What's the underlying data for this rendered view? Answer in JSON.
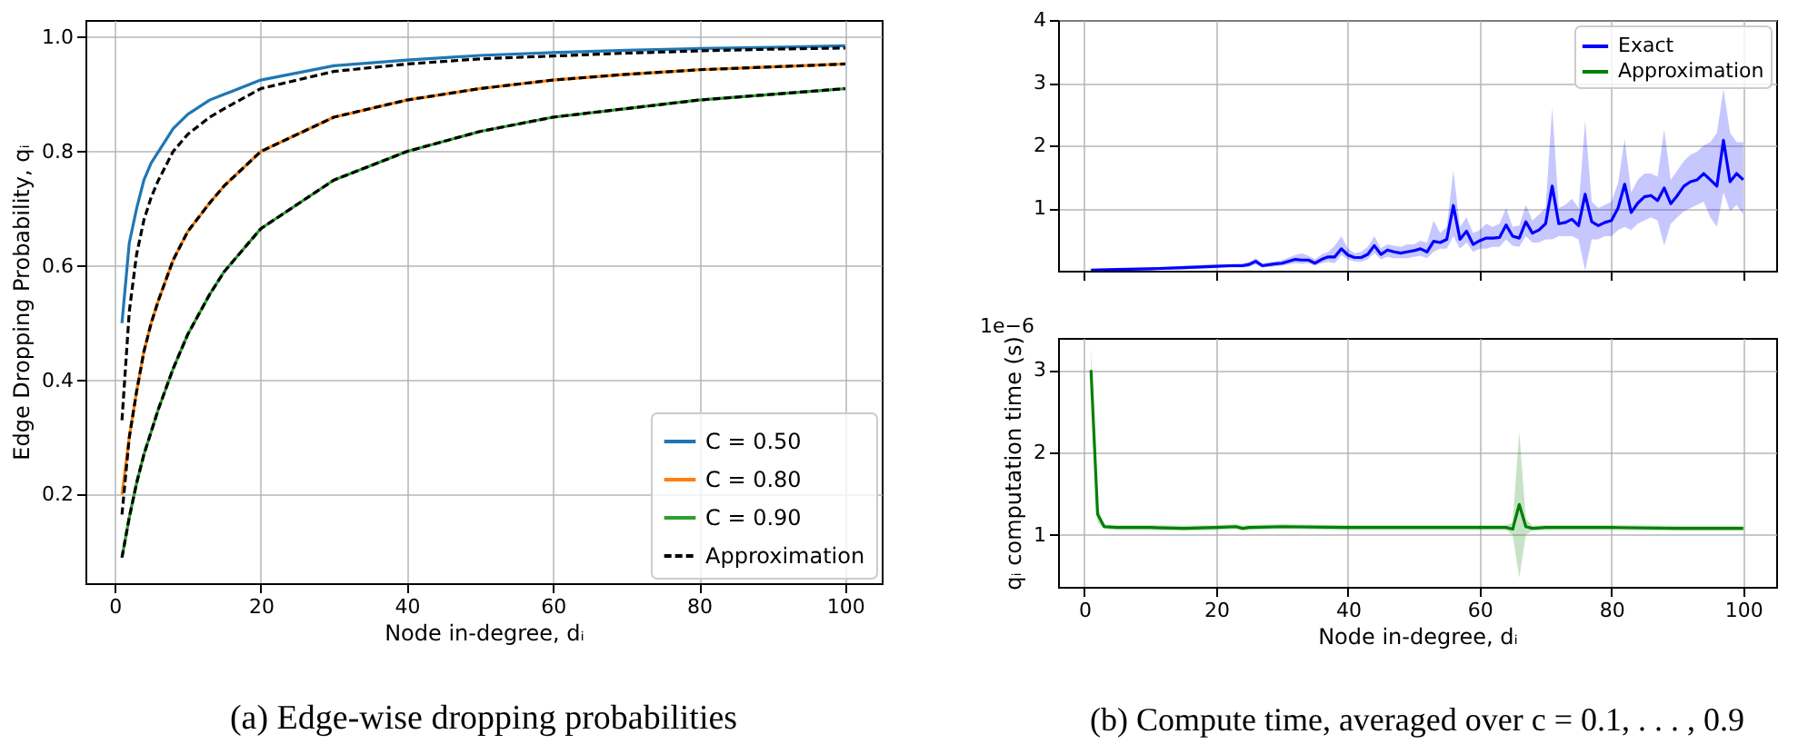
{
  "chart_data": [
    {
      "type": "line",
      "xlabel": "Node in-degree, dᵢ",
      "ylabel": "Edge Dropping Probability, qᵢ",
      "xlim": [
        -4,
        105
      ],
      "ylim": [
        0.045,
        1.03
      ],
      "xticks": [
        0,
        20,
        40,
        60,
        80,
        100
      ],
      "yticks": [
        0.2,
        0.4,
        0.6,
        0.8,
        {
          "value": 1.0,
          "label": "1.0"
        }
      ],
      "grid": true,
      "legend": "bottom right",
      "annotations": [
        "(a) Edge-wise dropping probabilities"
      ],
      "series": [
        {
          "name": "C = 0.50",
          "color": "#1f77b4",
          "line_style": "solid",
          "x": [
            1,
            2,
            3,
            4,
            5,
            6,
            8,
            10,
            13,
            15,
            20,
            30,
            40,
            50,
            60,
            70,
            80,
            90,
            100
          ],
          "values": [
            0.5,
            0.64,
            0.7,
            0.75,
            0.78,
            0.8,
            0.84,
            0.865,
            0.89,
            0.9,
            0.925,
            0.95,
            0.96,
            0.968,
            0.973,
            0.977,
            0.98,
            0.982,
            0.985
          ]
        },
        {
          "name": "C = 0.80",
          "color": "#ff7f0e",
          "line_style": "solid",
          "x": [
            1,
            2,
            3,
            4,
            5,
            6,
            8,
            10,
            13,
            15,
            20,
            30,
            40,
            50,
            60,
            70,
            80,
            90,
            100
          ],
          "values": [
            0.2,
            0.3,
            0.38,
            0.45,
            0.5,
            0.54,
            0.61,
            0.66,
            0.71,
            0.74,
            0.8,
            0.86,
            0.89,
            0.91,
            0.925,
            0.935,
            0.943,
            0.948,
            0.953
          ]
        },
        {
          "name": "C = 0.90",
          "color": "#2ca02c",
          "line_style": "solid",
          "x": [
            1,
            2,
            3,
            4,
            5,
            6,
            8,
            10,
            13,
            15,
            20,
            30,
            40,
            50,
            60,
            70,
            80,
            90,
            100
          ],
          "values": [
            0.09,
            0.16,
            0.22,
            0.27,
            0.31,
            0.35,
            0.42,
            0.48,
            0.55,
            0.59,
            0.665,
            0.75,
            0.8,
            0.835,
            0.86,
            0.875,
            0.89,
            0.9,
            0.91
          ]
        },
        {
          "name": "Approximation",
          "color": "#000000",
          "line_style": "dashed",
          "x": [
            1,
            2,
            3,
            4,
            5,
            6,
            8,
            10,
            13,
            15,
            20,
            30,
            40,
            50,
            60,
            70,
            80,
            90,
            100
          ],
          "values": [
            0.33,
            0.52,
            0.62,
            0.68,
            0.72,
            0.75,
            0.8,
            0.83,
            0.86,
            0.875,
            0.91,
            0.94,
            0.953,
            0.962,
            0.967,
            0.972,
            0.976,
            0.979,
            0.981
          ]
        },
        {
          "color": "#000000",
          "line_style": "dashed",
          "x": [
            1,
            2,
            3,
            4,
            5,
            6,
            8,
            10,
            13,
            15,
            20,
            30,
            40,
            50,
            60,
            70,
            80,
            90,
            100
          ],
          "values": [
            0.165,
            0.3,
            0.38,
            0.45,
            0.5,
            0.54,
            0.61,
            0.66,
            0.71,
            0.74,
            0.8,
            0.86,
            0.89,
            0.91,
            0.925,
            0.935,
            0.943,
            0.948,
            0.953
          ]
        },
        {
          "color": "#000000",
          "line_style": "dashed",
          "x": [
            1,
            2,
            3,
            4,
            5,
            6,
            8,
            10,
            13,
            15,
            20,
            30,
            40,
            50,
            60,
            70,
            80,
            90,
            100
          ],
          "values": [
            0.09,
            0.16,
            0.22,
            0.27,
            0.31,
            0.35,
            0.42,
            0.48,
            0.55,
            0.59,
            0.665,
            0.75,
            0.8,
            0.835,
            0.86,
            0.875,
            0.89,
            0.9,
            0.91
          ]
        }
      ]
    },
    {
      "type": "line",
      "xlim": [
        -4,
        105
      ],
      "ylim": [
        0,
        4
      ],
      "xticks": [
        0,
        20,
        40,
        60,
        80,
        100
      ],
      "yticks": [
        1,
        2,
        3,
        4
      ],
      "grid": true,
      "legend": "top right",
      "tick_labels": "y",
      "series": [
        {
          "name": "Exact",
          "color": "#0000ff",
          "line_style": "solid",
          "x": [
            1,
            5,
            10,
            15,
            20,
            22,
            24,
            25,
            26,
            27,
            29,
            30,
            32,
            33,
            34,
            35,
            36,
            37,
            38,
            39,
            40,
            41,
            42,
            43,
            44,
            45,
            46,
            47,
            48,
            49,
            50,
            51,
            52,
            53,
            54,
            55,
            56,
            57,
            58,
            59,
            60,
            61,
            62,
            63,
            64,
            65,
            66,
            67,
            68,
            69,
            70,
            71,
            72,
            73,
            74,
            75,
            76,
            77,
            78,
            79,
            80,
            81,
            82,
            83,
            84,
            85,
            86,
            87,
            88,
            89,
            90,
            91,
            92,
            93,
            94,
            95,
            96,
            97,
            98,
            99,
            100
          ],
          "values": [
            0.01,
            0.02,
            0.03,
            0.05,
            0.07,
            0.08,
            0.08,
            0.1,
            0.15,
            0.08,
            0.11,
            0.12,
            0.18,
            0.17,
            0.17,
            0.12,
            0.18,
            0.22,
            0.22,
            0.35,
            0.25,
            0.21,
            0.21,
            0.26,
            0.4,
            0.26,
            0.33,
            0.3,
            0.28,
            0.3,
            0.32,
            0.35,
            0.3,
            0.47,
            0.45,
            0.5,
            1.04,
            0.5,
            0.63,
            0.42,
            0.48,
            0.52,
            0.52,
            0.53,
            0.73,
            0.55,
            0.52,
            0.78,
            0.6,
            0.65,
            0.75,
            1.35,
            0.75,
            0.77,
            0.82,
            0.72,
            1.22,
            0.78,
            0.72,
            0.77,
            0.8,
            1.0,
            1.38,
            0.93,
            1.08,
            1.18,
            1.2,
            1.12,
            1.32,
            1.07,
            1.2,
            1.35,
            1.42,
            1.45,
            1.55,
            1.45,
            1.35,
            2.08,
            1.42,
            1.55,
            1.45
          ],
          "lower": [
            0.0,
            0.0,
            0.01,
            0.02,
            0.04,
            0.05,
            0.05,
            0.06,
            0.1,
            0.05,
            0.07,
            0.08,
            0.12,
            0.11,
            0.12,
            0.08,
            0.12,
            0.14,
            0.12,
            0.25,
            0.18,
            0.15,
            0.14,
            0.18,
            0.28,
            0.18,
            0.22,
            0.2,
            0.2,
            0.2,
            0.22,
            0.24,
            0.2,
            0.3,
            0.35,
            0.35,
            0.55,
            0.35,
            0.45,
            0.3,
            0.35,
            0.35,
            0.38,
            0.38,
            0.5,
            0.4,
            0.38,
            0.55,
            0.45,
            0.45,
            0.5,
            0.5,
            0.55,
            0.55,
            0.55,
            0.5,
            0.0,
            0.5,
            0.5,
            0.55,
            0.55,
            0.65,
            0.7,
            0.65,
            0.75,
            0.8,
            0.85,
            0.8,
            0.4,
            0.75,
            0.85,
            0.95,
            1.0,
            1.05,
            1.1,
            0.85,
            0.7,
            1.25,
            0.95,
            1.05,
            0.9
          ],
          "upper": [
            0.03,
            0.04,
            0.05,
            0.08,
            0.1,
            0.11,
            0.12,
            0.14,
            0.2,
            0.12,
            0.15,
            0.17,
            0.25,
            0.28,
            0.24,
            0.18,
            0.26,
            0.3,
            0.4,
            0.55,
            0.35,
            0.28,
            0.3,
            0.38,
            0.55,
            0.36,
            0.42,
            0.4,
            0.38,
            0.42,
            0.42,
            0.48,
            0.45,
            0.8,
            0.6,
            0.7,
            1.6,
            0.7,
            0.85,
            0.6,
            0.65,
            0.75,
            0.7,
            0.75,
            1.0,
            0.7,
            0.72,
            1.05,
            0.8,
            0.9,
            1.0,
            2.6,
            1.0,
            1.05,
            1.15,
            1.0,
            2.4,
            1.1,
            1.0,
            1.05,
            1.1,
            1.4,
            2.1,
            1.25,
            1.45,
            1.55,
            1.55,
            1.5,
            2.25,
            1.45,
            1.6,
            1.75,
            1.85,
            1.9,
            2.0,
            2.05,
            2.2,
            2.9,
            2.2,
            2.05,
            2.05
          ]
        }
      ]
    },
    {
      "type": "line",
      "xlabel": "Node in-degree, dᵢ",
      "ylabel": "qᵢ computation time (s)",
      "xlim": [
        -4,
        105
      ],
      "ylim": [
        0.37,
        3.39
      ],
      "xticks": [
        0,
        20,
        40,
        60,
        80,
        100
      ],
      "yticks": [
        1,
        2,
        3
      ],
      "grid": true,
      "annotations": [
        "1e−6",
        "(b) Compute time, averaged over c = 0.1, . . . , 0.9"
      ],
      "series": [
        {
          "name": "Approximation",
          "color": "#008000",
          "line_style": "solid",
          "x": [
            1,
            2,
            3,
            5,
            10,
            15,
            20,
            23,
            24,
            25,
            30,
            40,
            50,
            60,
            64,
            65,
            66,
            67,
            68,
            70,
            80,
            90,
            100
          ],
          "values": [
            3.0,
            1.25,
            1.1,
            1.09,
            1.09,
            1.08,
            1.09,
            1.1,
            1.08,
            1.09,
            1.1,
            1.09,
            1.09,
            1.09,
            1.09,
            1.07,
            1.37,
            1.1,
            1.08,
            1.09,
            1.09,
            1.08,
            1.08
          ],
          "lower": [
            2.75,
            1.15,
            1.07,
            1.06,
            1.06,
            1.05,
            1.06,
            1.07,
            1.05,
            1.06,
            1.07,
            1.06,
            1.06,
            1.06,
            1.06,
            1.0,
            0.48,
            1.0,
            1.05,
            1.06,
            1.06,
            1.05,
            1.05
          ],
          "upper": [
            3.27,
            1.35,
            1.13,
            1.12,
            1.12,
            1.11,
            1.12,
            1.13,
            1.11,
            1.12,
            1.13,
            1.12,
            1.12,
            1.12,
            1.12,
            1.15,
            2.25,
            1.2,
            1.11,
            1.12,
            1.12,
            1.11,
            1.11
          ]
        }
      ]
    }
  ]
}
